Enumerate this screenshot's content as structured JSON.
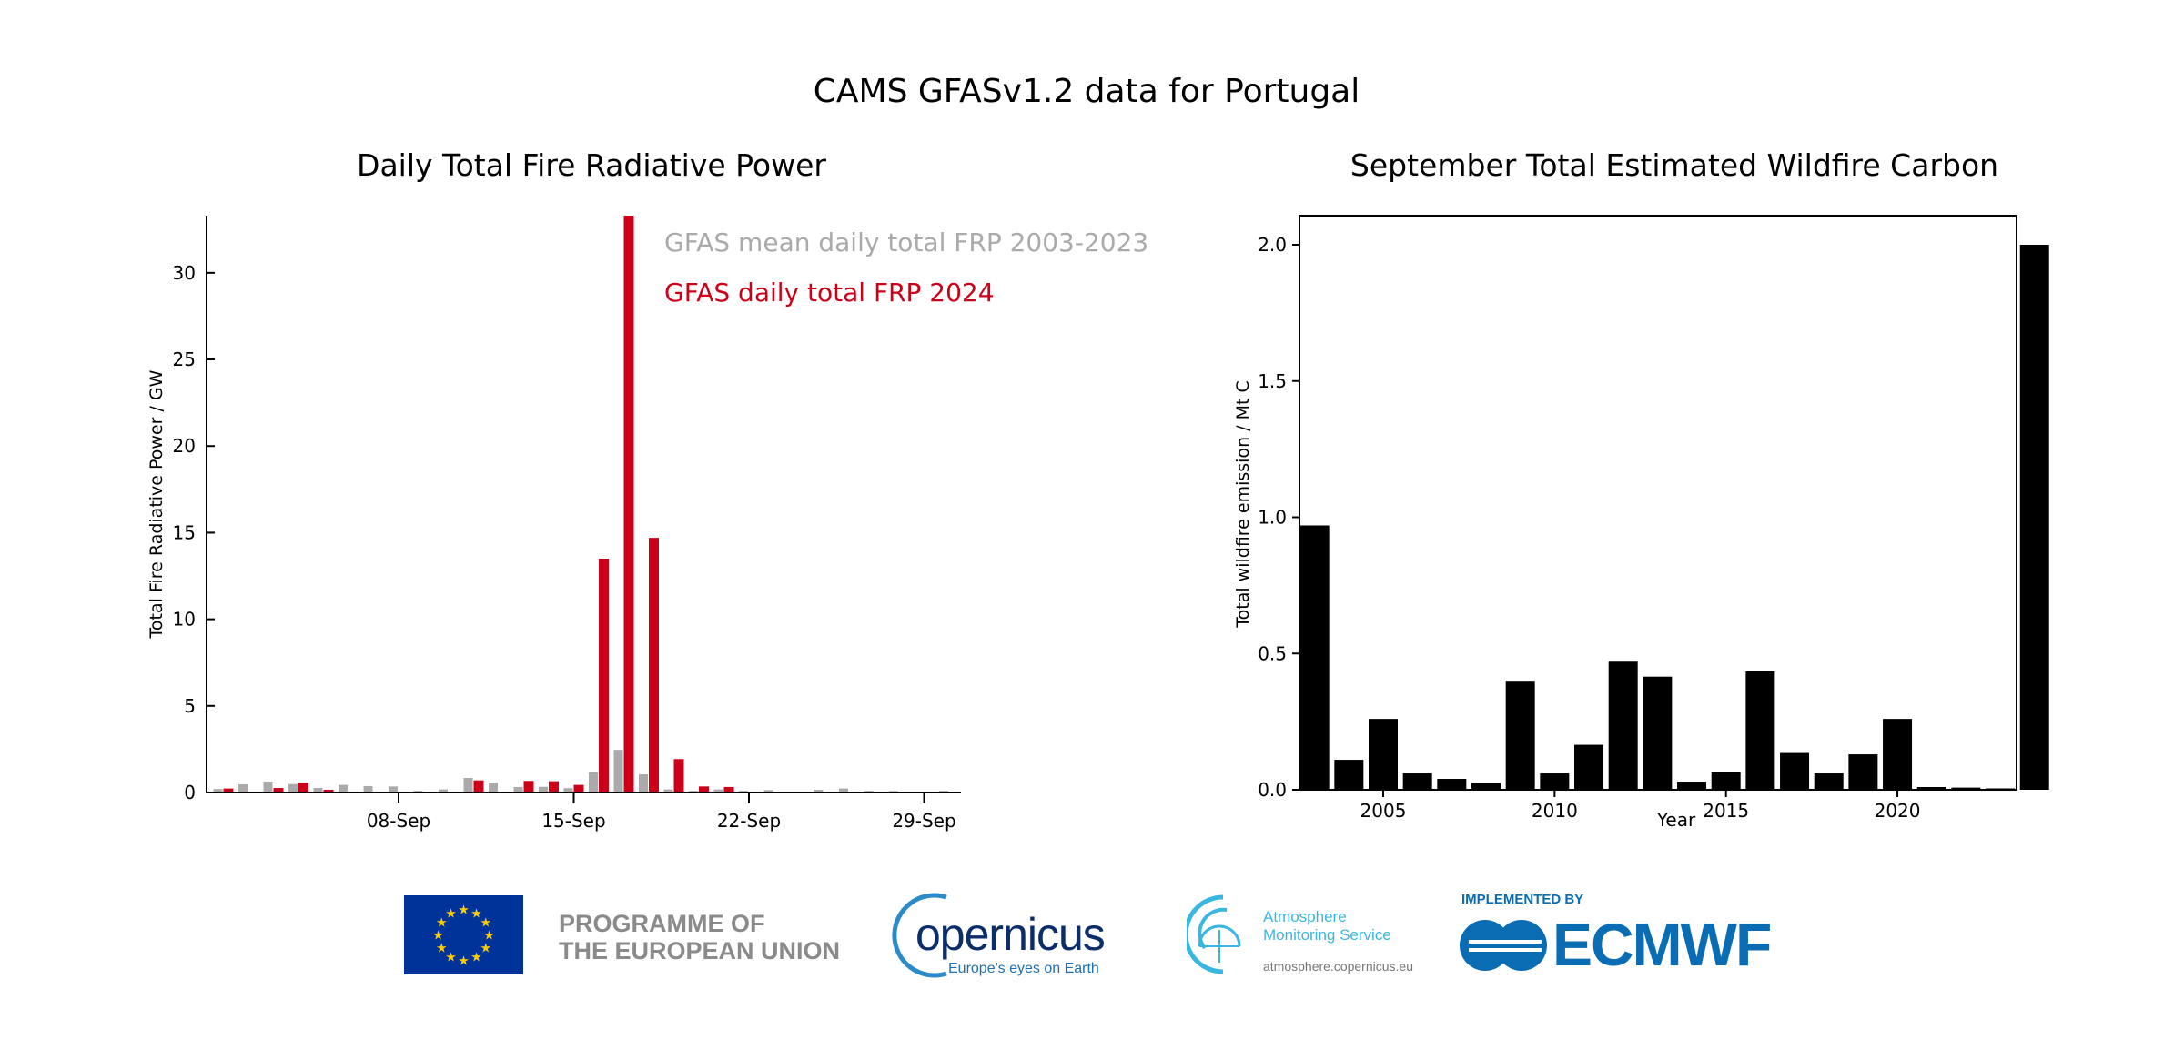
{
  "title": "CAMS GFASv1.2 data for Portugal",
  "chart_data": [
    {
      "type": "bar",
      "title": "Daily Total Fire Radiative Power",
      "xlabel": "",
      "ylabel": "Total Fire Radiative Power / GW",
      "x": [
        1,
        2,
        3,
        4,
        5,
        6,
        7,
        8,
        9,
        10,
        11,
        12,
        13,
        14,
        15,
        16,
        17,
        18,
        19,
        20,
        21,
        22,
        23,
        24,
        25,
        26,
        27,
        28,
        29,
        30
      ],
      "xtick_days": [
        8,
        15,
        22,
        29
      ],
      "xtick_labels": [
        "08-Sep",
        "15-Sep",
        "22-Sep",
        "29-Sep"
      ],
      "yticks": [
        0,
        5,
        10,
        15,
        20,
        25,
        30
      ],
      "ylim": [
        0,
        33.3
      ],
      "legend_position": "top-right",
      "series": [
        {
          "name": "GFAS mean daily total FRP 2003-2023",
          "color": "#aaaaaa",
          "values": [
            0.2,
            0.47,
            0.63,
            0.49,
            0.26,
            0.44,
            0.37,
            0.35,
            0.1,
            0.18,
            0.84,
            0.56,
            0.32,
            0.33,
            0.25,
            1.18,
            2.46,
            1.05,
            0.18,
            0.1,
            0.18,
            0.1,
            0.14,
            0.04,
            0.16,
            0.23,
            0.1,
            0.09,
            0.05,
            0.1
          ]
        },
        {
          "name": "GFAS daily total FRP 2024",
          "color": "#cc0018",
          "values": [
            0.23,
            0,
            0.26,
            0.56,
            0.16,
            0,
            0,
            0,
            0,
            0,
            0.7,
            0.05,
            0.67,
            0.65,
            0.44,
            13.5,
            33.3,
            14.7,
            1.93,
            0.35,
            0.32,
            0,
            0,
            0,
            0,
            0,
            0,
            0,
            0,
            0
          ]
        }
      ]
    },
    {
      "type": "bar",
      "title": "September Total Estimated Wildfire Carbon",
      "xlabel": "Year",
      "ylabel": "Total wildfire emission / Mt C",
      "x": [
        2003,
        2004,
        2005,
        2006,
        2007,
        2008,
        2009,
        2010,
        2011,
        2012,
        2013,
        2014,
        2015,
        2016,
        2017,
        2018,
        2019,
        2020,
        2021,
        2022,
        2023,
        2024
      ],
      "values": [
        0.97,
        0.11,
        0.26,
        0.06,
        0.04,
        0.025,
        0.4,
        0.06,
        0.165,
        0.47,
        0.415,
        0.03,
        0.065,
        0.435,
        0.135,
        0.06,
        0.13,
        0.26,
        0.01,
        0.008,
        0.005,
        2.0
      ],
      "xticks": [
        2005,
        2010,
        2015,
        2020
      ],
      "yticks": [
        0.0,
        0.5,
        1.0,
        1.5,
        2.0
      ],
      "ytick_labels": [
        "0.0",
        "0.5",
        "1.0",
        "1.5",
        "2.0"
      ],
      "ylim": [
        0,
        2.1
      ],
      "color": "#000000"
    }
  ],
  "logos": {
    "eu_text_1": "PROGRAMME OF",
    "eu_text_2": "THE EUROPEAN UNION",
    "copernicus_word": "opernicus",
    "copernicus_tagline": "Europe's eyes on Earth",
    "cams_line1": "Atmosphere",
    "cams_line2": "Monitoring Service",
    "cams_url": "atmosphere.copernicus.eu",
    "implemented_by": "IMPLEMENTED BY",
    "ecmwf": "ECMWF"
  }
}
